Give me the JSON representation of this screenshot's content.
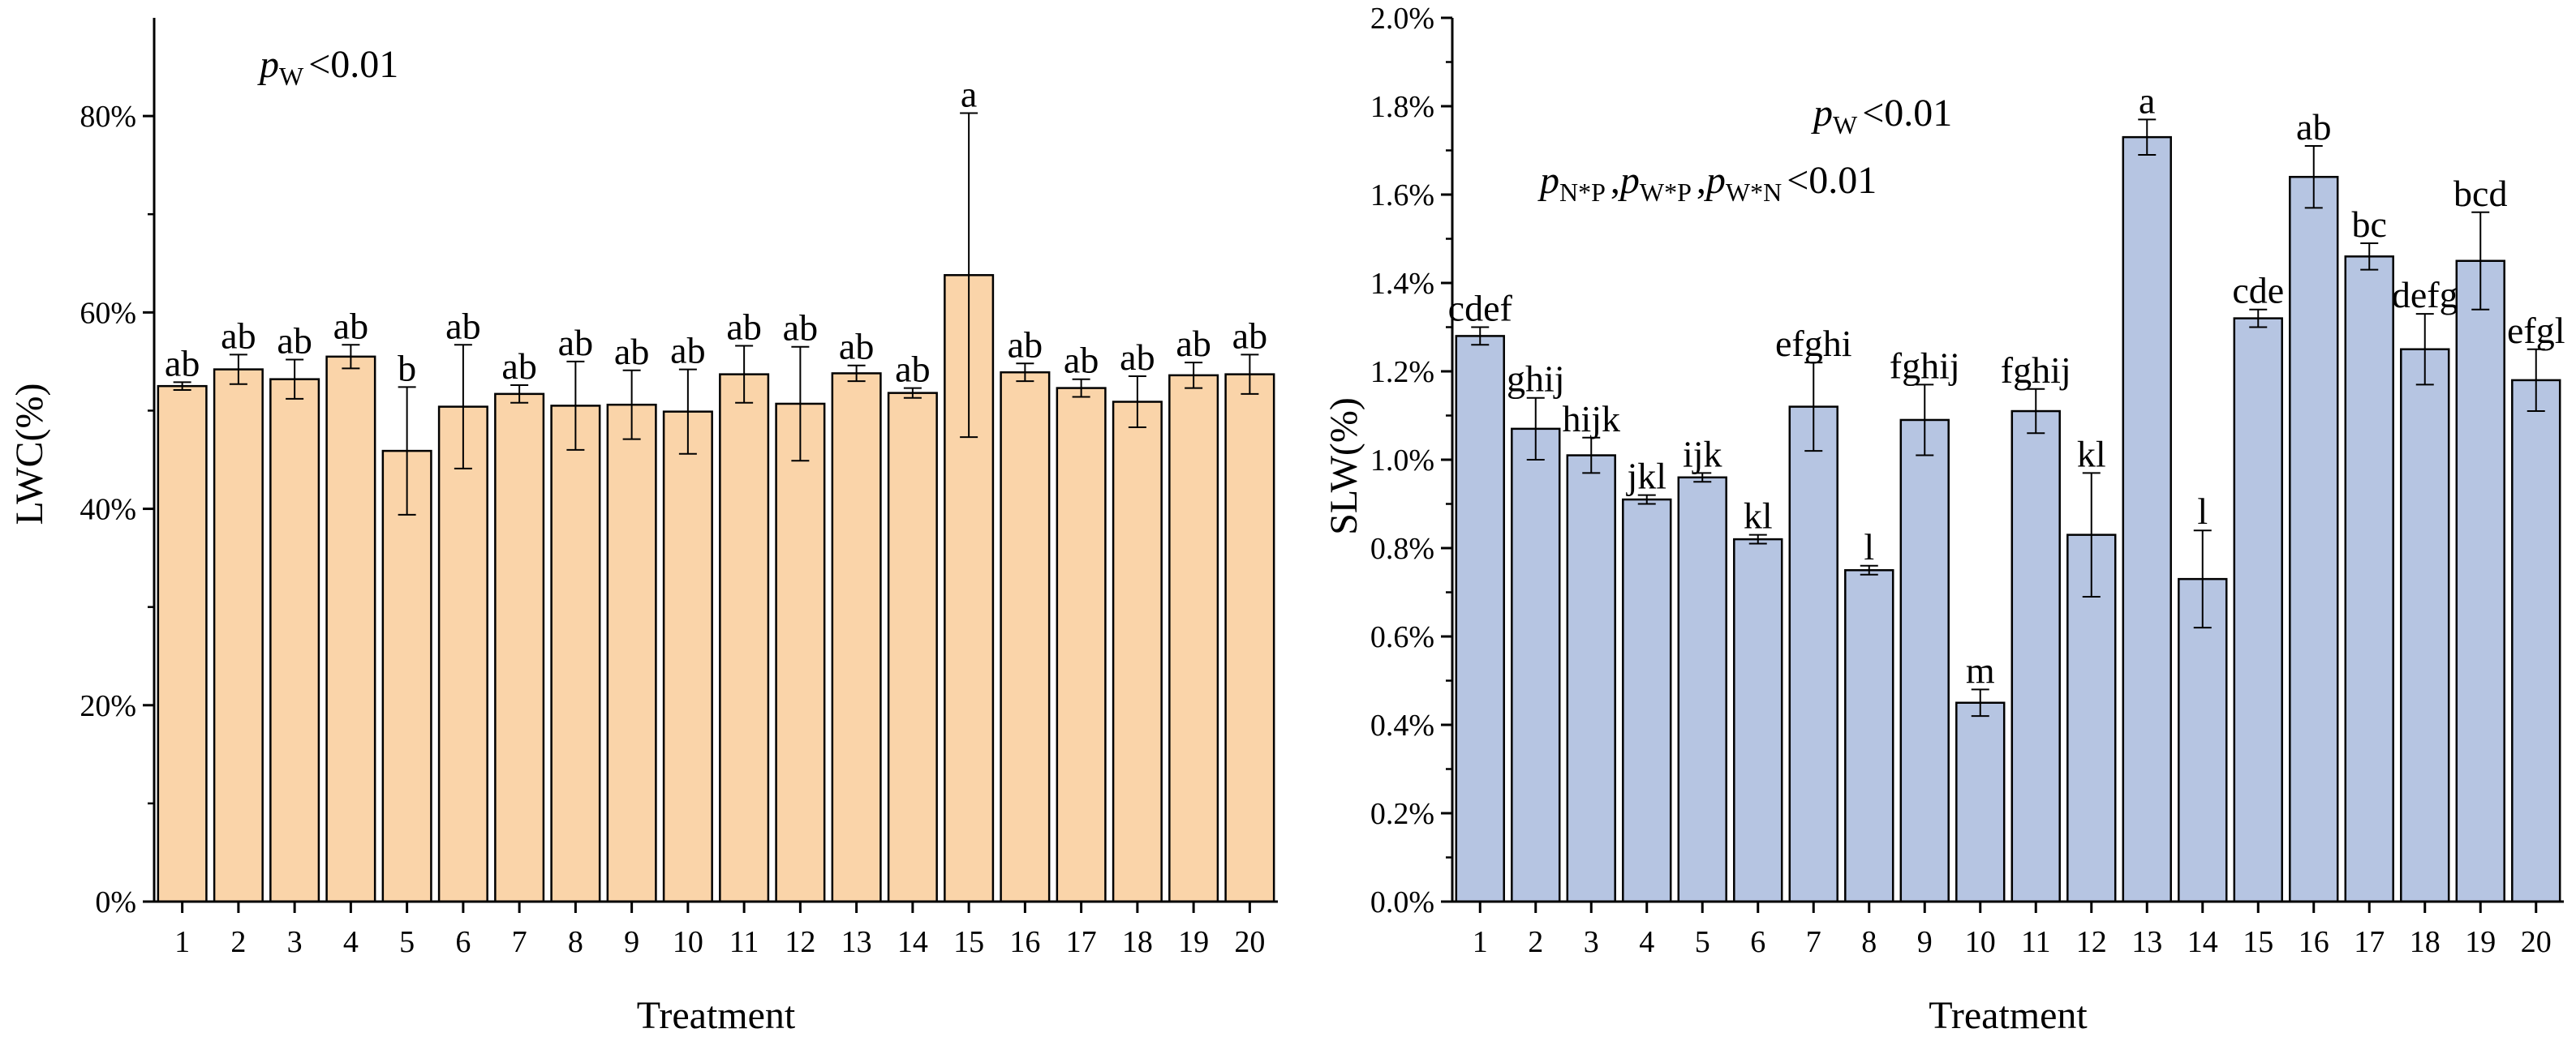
{
  "chart_data": [
    {
      "type": "bar",
      "panel": "left",
      "title": "",
      "xlabel": "Treatment",
      "ylabel": "LWC(%)",
      "ylim": [
        0,
        90
      ],
      "ytick_values": [
        0,
        20,
        40,
        60,
        80
      ],
      "ytick_labels": [
        "0%",
        "20%",
        "40%",
        "60%",
        "80%"
      ],
      "categories": [
        "1",
        "2",
        "3",
        "4",
        "5",
        "6",
        "7",
        "8",
        "9",
        "10",
        "11",
        "12",
        "13",
        "14",
        "15",
        "16",
        "17",
        "18",
        "19",
        "20"
      ],
      "values": [
        52.5,
        54.2,
        53.2,
        55.5,
        45.9,
        50.4,
        51.7,
        50.5,
        50.6,
        49.9,
        53.7,
        50.7,
        53.8,
        51.8,
        63.8,
        53.9,
        52.3,
        50.9,
        53.6,
        53.7
      ],
      "errors": [
        0.4,
        1.5,
        2.0,
        1.2,
        6.5,
        6.3,
        0.9,
        4.5,
        3.5,
        4.3,
        2.9,
        5.8,
        0.8,
        0.5,
        16.5,
        0.9,
        0.9,
        2.6,
        1.3,
        2.0
      ],
      "letters": [
        "ab",
        "ab",
        "ab",
        "ab",
        "b",
        "ab",
        "ab",
        "ab",
        "ab",
        "ab",
        "ab",
        "ab",
        "ab",
        "ab",
        "a",
        "ab",
        "ab",
        "ab",
        "ab",
        "ab"
      ],
      "bar_color": "#fad4a9",
      "annotation": {
        "p": "p",
        "sub": "W",
        "text": "<0.01"
      }
    },
    {
      "type": "bar",
      "panel": "right",
      "title": "",
      "xlabel": "Treatment",
      "ylabel": "SLW(%)",
      "ylim": [
        0,
        2.0
      ],
      "ytick_values": [
        0,
        0.2,
        0.4,
        0.6,
        0.8,
        1.0,
        1.2,
        1.4,
        1.6,
        1.8,
        2.0
      ],
      "ytick_labels": [
        "0.0%",
        "0.2%",
        "0.4%",
        "0.6%",
        "0.8%",
        "1.0%",
        "1.2%",
        "1.4%",
        "1.6%",
        "1.8%",
        "2.0%"
      ],
      "categories": [
        "1",
        "2",
        "3",
        "4",
        "5",
        "6",
        "7",
        "8",
        "9",
        "10",
        "11",
        "12",
        "13",
        "14",
        "15",
        "16",
        "17",
        "18",
        "19",
        "20"
      ],
      "values": [
        1.28,
        1.07,
        1.01,
        0.91,
        0.96,
        0.82,
        1.12,
        0.75,
        1.09,
        0.45,
        1.11,
        0.83,
        1.73,
        0.73,
        1.32,
        1.64,
        1.46,
        1.25,
        1.45,
        1.18
      ],
      "errors": [
        0.02,
        0.07,
        0.04,
        0.01,
        0.01,
        0.01,
        0.1,
        0.01,
        0.08,
        0.03,
        0.05,
        0.14,
        0.04,
        0.11,
        0.02,
        0.07,
        0.03,
        0.08,
        0.11,
        0.07
      ],
      "letters": [
        "cdef",
        "ghij",
        "hijk",
        "jkl",
        "ijk",
        "kl",
        "efghi",
        "l",
        "fghij",
        "m",
        "fghij",
        "kl",
        "a",
        "l",
        "cde",
        "ab",
        "bc",
        "defg",
        "bcd",
        "efgl"
      ],
      "bar_color": "#b6c5e2",
      "annotation": {
        "p": "p",
        "sub": "W",
        "text": "<0.01"
      },
      "annotation2": {
        "parts": [
          {
            "p": "p",
            "sub": "N*P",
            "text": ","
          },
          {
            "p": "p",
            "sub": "W*P",
            "text": ","
          },
          {
            "p": "p",
            "sub": "W*N",
            "text": "<0.01"
          }
        ]
      }
    }
  ]
}
